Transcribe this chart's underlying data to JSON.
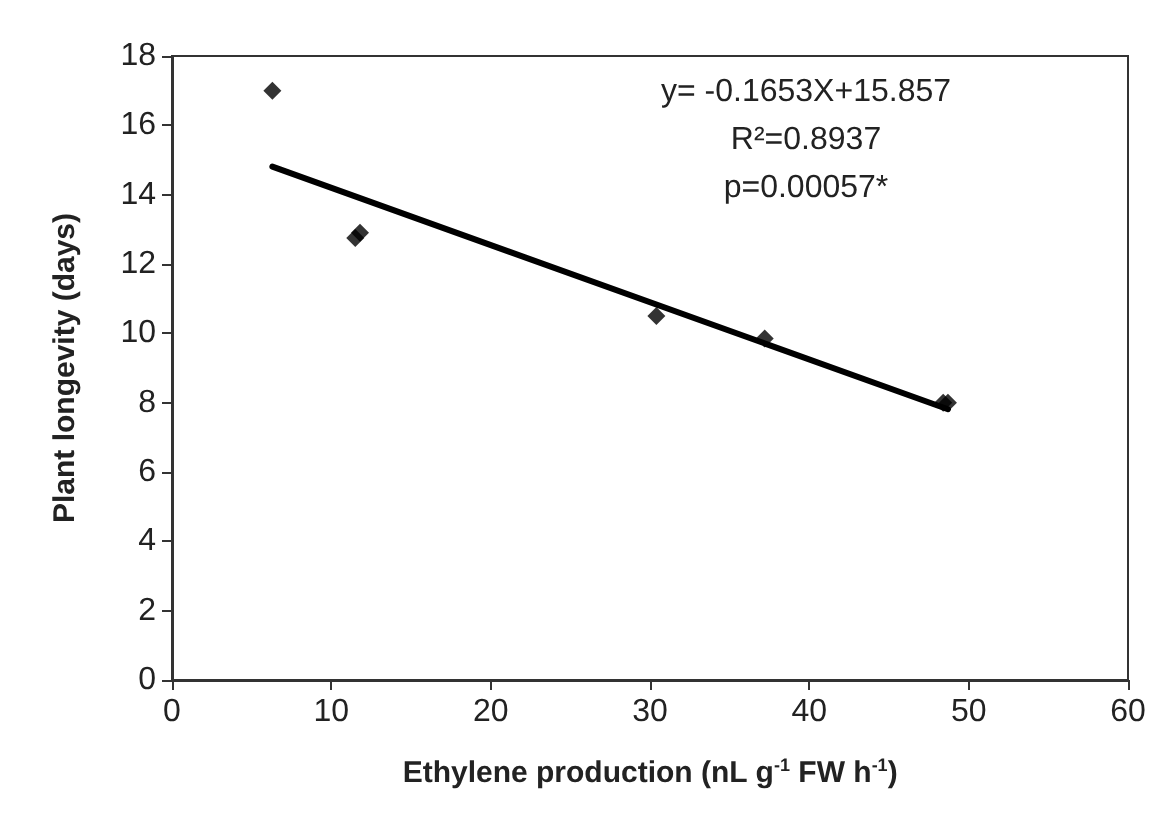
{
  "chart_data": {
    "type": "scatter",
    "xlabel": "Ethylene production (nL g$^{-1}$ FW h$^{-1}$)",
    "ylabel": "Plant longevity (days)",
    "series": [
      {
        "color": "#000000",
        "marker": "diamond",
        "x": [
          6.3,
          11.5,
          11.8,
          30.4,
          37.2,
          48.4,
          48.7
        ],
        "values": [
          17.0,
          12.75,
          12.9,
          10.5,
          9.85,
          8.0,
          8.0
        ]
      },
      {
        "type": "line",
        "color": "#000000",
        "marker": "none",
        "line_style": "solid",
        "x": [
          6.3,
          48.7
        ],
        "values": [
          14.81,
          7.81
        ]
      }
    ],
    "annotations": [
      "y= -0.1653X+15.857",
      "R²=0.8937",
      "p=0.00057*"
    ],
    "xlim": [
      0,
      60
    ],
    "xticks": [
      0,
      10,
      20,
      30,
      40,
      50,
      60
    ],
    "ylim": [
      0,
      18
    ],
    "yticks": [
      0,
      2,
      4,
      6,
      8,
      10,
      12,
      14,
      16,
      18
    ],
    "grid": false
  }
}
